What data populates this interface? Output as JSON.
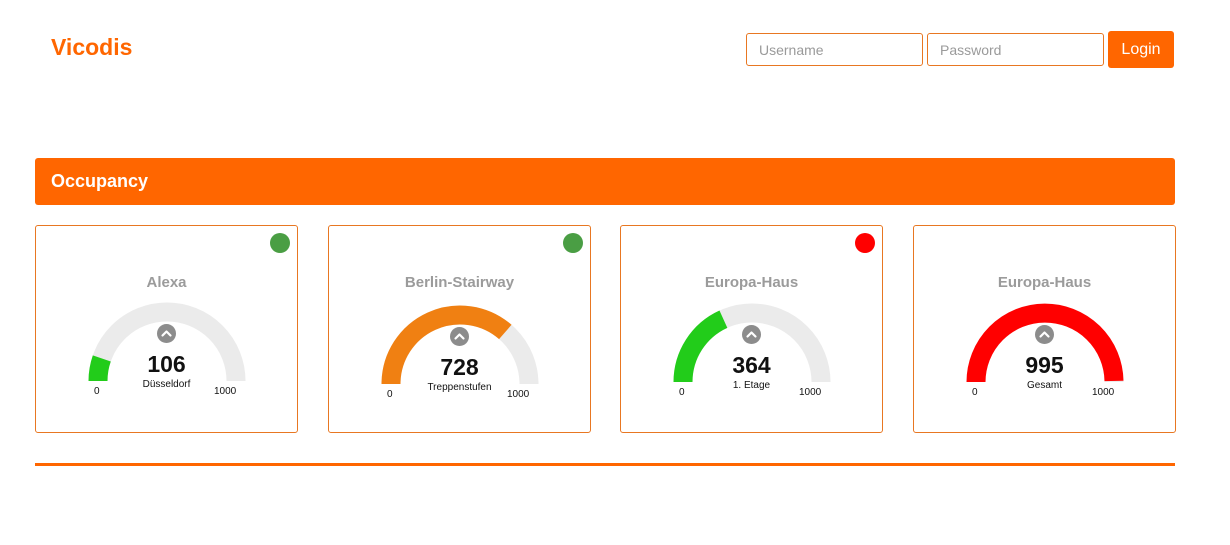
{
  "brand": {
    "name": "Vicodis"
  },
  "login": {
    "username_placeholder": "Username",
    "password_placeholder": "Password",
    "login_label": "Login"
  },
  "section": {
    "title": "Occupancy"
  },
  "colors": {
    "accent": "#ff6600",
    "track": "#ebebeb",
    "status_green": "#4a9e44",
    "status_red": "#ff0000"
  },
  "cards": [
    {
      "title": "Alexa",
      "value": 106,
      "value_text": "106",
      "subtitle": "Düsseldorf",
      "min": "0",
      "max": "1000",
      "max_value": 1000,
      "gauge_color": "#22cc1a",
      "status": "green",
      "status_color": "#4a9e44"
    },
    {
      "title": "Berlin-Stairway",
      "value": 728,
      "value_text": "728",
      "subtitle": "Treppenstufen",
      "min": "0",
      "max": "1000",
      "max_value": 1000,
      "gauge_color": "#f08012",
      "status": "green",
      "status_color": "#4a9e44"
    },
    {
      "title": "Europa-Haus",
      "value": 364,
      "value_text": "364",
      "subtitle": "1. Etage",
      "min": "0",
      "max": "1000",
      "max_value": 1000,
      "gauge_color": "#22cc1a",
      "status": "red",
      "status_color": "#ff0000"
    },
    {
      "title": "Europa-Haus",
      "value": 995,
      "value_text": "995",
      "subtitle": "Gesamt",
      "min": "0",
      "max": "1000",
      "max_value": 1000,
      "gauge_color": "#ff0000",
      "status": "",
      "status_color": ""
    }
  ]
}
